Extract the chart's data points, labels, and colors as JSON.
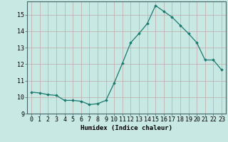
{
  "x": [
    0,
    1,
    2,
    3,
    4,
    5,
    6,
    7,
    8,
    9,
    10,
    11,
    12,
    13,
    14,
    15,
    16,
    17,
    18,
    19,
    20,
    21,
    22,
    23
  ],
  "y": [
    10.3,
    10.25,
    10.15,
    10.1,
    9.8,
    9.8,
    9.75,
    9.55,
    9.6,
    9.8,
    10.85,
    12.05,
    13.3,
    13.85,
    14.45,
    15.55,
    15.2,
    14.85,
    14.35,
    13.85,
    13.3,
    12.25,
    12.25,
    11.65
  ],
  "line_color": "#1a7a6e",
  "bg_color": "#c8e8e4",
  "grid_color": "#c0a8a8",
  "xlabel": "Humidex (Indice chaleur)",
  "ylim": [
    9,
    15.8
  ],
  "xlim": [
    -0.5,
    23.5
  ],
  "yticks": [
    9,
    10,
    11,
    12,
    13,
    14,
    15
  ],
  "xticks": [
    0,
    1,
    2,
    3,
    4,
    5,
    6,
    7,
    8,
    9,
    10,
    11,
    12,
    13,
    14,
    15,
    16,
    17,
    18,
    19,
    20,
    21,
    22,
    23
  ],
  "marker": "D",
  "markersize": 1.8,
  "linewidth": 0.9,
  "xlabel_fontsize": 6.5,
  "tick_fontsize": 6.0
}
